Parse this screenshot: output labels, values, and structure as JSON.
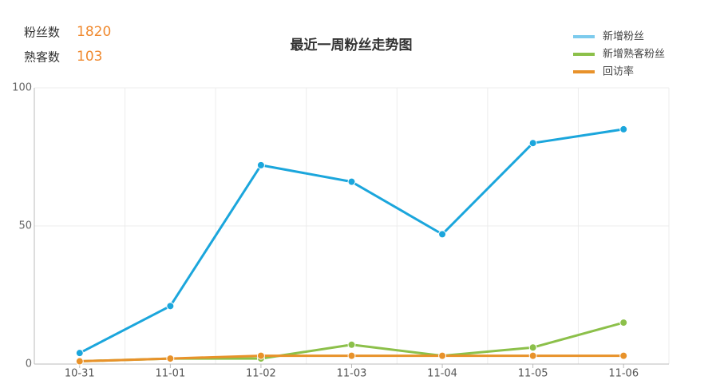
{
  "stats": [
    {
      "label": "粉丝数",
      "value": 1820
    },
    {
      "label": "熟客数",
      "value": 103
    }
  ],
  "chart_data": {
    "type": "line",
    "title": "最近一周粉丝走势图",
    "categories": [
      "10-31",
      "11-01",
      "11-02",
      "11-03",
      "11-04",
      "11-05",
      "11-06"
    ],
    "series": [
      {
        "name": "新增粉丝",
        "color": "#1ba6dc",
        "values": [
          4,
          21,
          72,
          66,
          47,
          80,
          85
        ]
      },
      {
        "name": "新增熟客粉丝",
        "color": "#8cc04a",
        "values": [
          1,
          2,
          2,
          7,
          3,
          6,
          15
        ]
      },
      {
        "name": "回访率",
        "color": "#e8922a",
        "values": [
          1,
          2,
          3,
          3,
          3,
          3,
          3
        ]
      }
    ],
    "ylim": [
      0,
      100
    ],
    "yticks": [
      0,
      50,
      100
    ],
    "grid": true,
    "legend": "top-right"
  }
}
